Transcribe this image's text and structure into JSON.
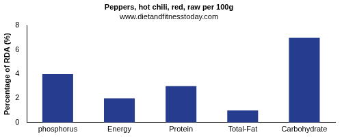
{
  "chart_data": {
    "type": "bar",
    "title": "Peppers, hot chili, red, raw per 100g",
    "subtitle": "www.dietandfitnesstoday.com",
    "y_label": "Percentage of RDA (%)",
    "categories": [
      "phosphorus",
      "Energy",
      "Protein",
      "Total-Fat",
      "Carbohydrate"
    ],
    "values": [
      4,
      2,
      3,
      1,
      7
    ],
    "color": "#263d8f",
    "ylim": [
      0,
      8
    ],
    "yticks": [
      0,
      2,
      4,
      6,
      8
    ],
    "grid": false
  }
}
